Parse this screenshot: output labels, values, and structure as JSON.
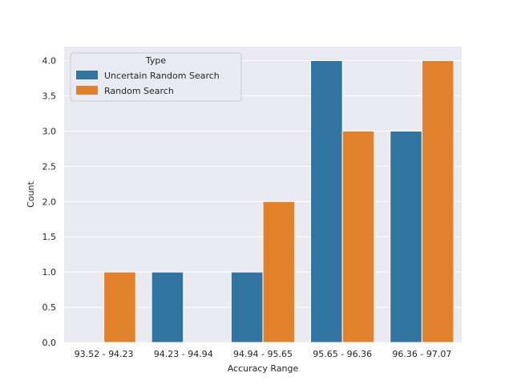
{
  "chart_data": {
    "type": "bar",
    "title": "",
    "xlabel": "Accuracy Range",
    "ylabel": "Count",
    "categories": [
      "93.52 - 94.23",
      "94.23 - 94.94",
      "94.94 - 95.65",
      "95.65 - 96.36",
      "96.36 - 97.07"
    ],
    "series": [
      {
        "name": "Uncertain Random Search",
        "color": "#3274a1",
        "values": [
          0,
          1,
          1,
          4,
          3
        ]
      },
      {
        "name": "Random Search",
        "color": "#e1812c",
        "values": [
          1,
          0,
          2,
          3,
          4
        ]
      }
    ],
    "ylim": [
      0,
      4.2
    ],
    "yticks": [
      "0.0",
      "0.5",
      "1.0",
      "1.5",
      "2.0",
      "2.5",
      "3.0",
      "3.5",
      "4.0"
    ],
    "grid": true,
    "legend": {
      "title": "Type",
      "placement": "top-left"
    },
    "colors": {
      "plot_background": "#eaeaf2",
      "grid": "#ffffff"
    }
  }
}
